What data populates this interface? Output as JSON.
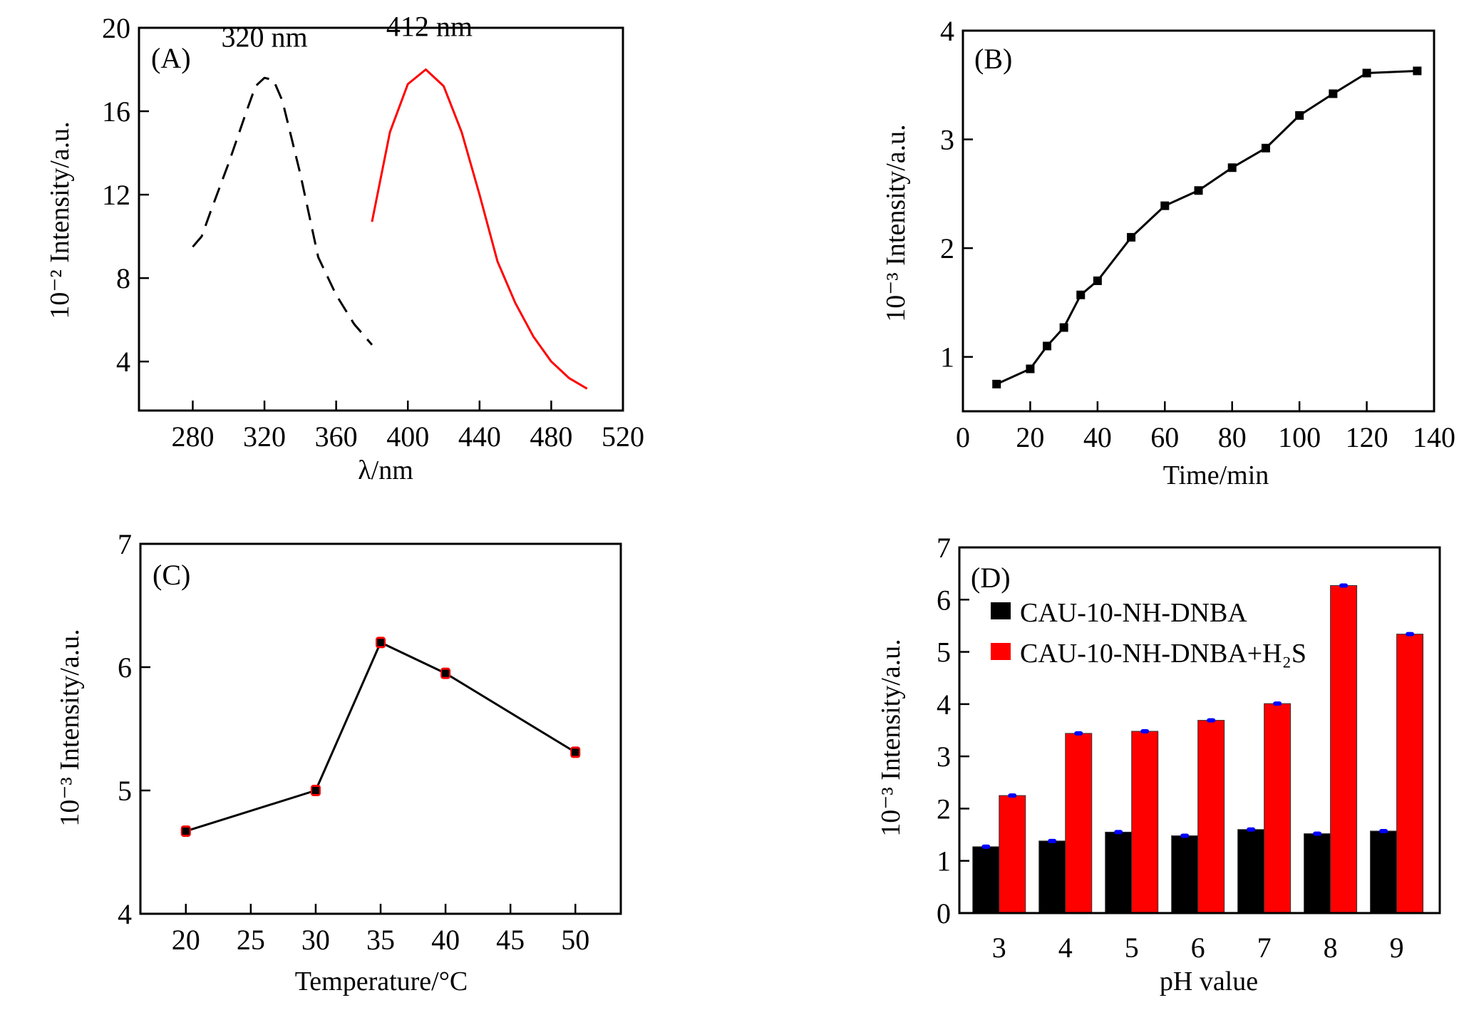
{
  "chart_data": [
    {
      "panel": "(A)",
      "type": "line",
      "xlabel": "λ/nm",
      "ylabel": "10⁻² Intensity/a.u.",
      "xlim": [
        250,
        520
      ],
      "ylim": [
        1.65,
        20
      ],
      "xticks": [
        280,
        320,
        360,
        400,
        440,
        480,
        520
      ],
      "yticks": [
        4,
        8,
        12,
        16,
        20
      ],
      "annotations": [
        {
          "text": "320 nm",
          "x": 320,
          "y": 19.1
        },
        {
          "text": "412 nm",
          "x": 412,
          "y": 19.6
        }
      ],
      "series": [
        {
          "style": "dashed",
          "color": "#000000",
          "x": [
            280,
            285,
            290,
            300,
            310,
            315,
            320,
            325,
            330,
            340,
            350,
            360,
            370,
            380
          ],
          "y": [
            9.5,
            10.0,
            11.2,
            13.5,
            16.0,
            17.2,
            17.6,
            17.5,
            16.5,
            13.0,
            9.0,
            7.2,
            5.8,
            4.8
          ]
        },
        {
          "style": "solid",
          "color": "#ff0000",
          "x": [
            380,
            390,
            400,
            410,
            420,
            430,
            440,
            450,
            460,
            470,
            480,
            490,
            500
          ],
          "y": [
            10.7,
            15.0,
            17.3,
            18.0,
            17.2,
            15.0,
            12.0,
            8.8,
            6.8,
            5.2,
            4.0,
            3.2,
            2.7
          ]
        }
      ]
    },
    {
      "panel": "(B)",
      "type": "line",
      "xlabel": "Time/min",
      "ylabel": "10⁻³ Intensity/a.u.",
      "xlim": [
        0,
        140
      ],
      "ylim": [
        0.5,
        4
      ],
      "xticks": [
        0,
        20,
        40,
        60,
        80,
        100,
        120,
        140
      ],
      "yticks": [
        1,
        2,
        3,
        4
      ],
      "series": [
        {
          "marker": "square",
          "color": "#000000",
          "x": [
            10,
            20,
            25,
            30,
            35,
            40,
            50,
            60,
            70,
            80,
            90,
            100,
            110,
            120,
            135
          ],
          "y": [
            0.75,
            0.89,
            1.1,
            1.27,
            1.57,
            1.7,
            2.1,
            2.39,
            2.53,
            2.74,
            2.92,
            3.22,
            3.42,
            3.61,
            3.63
          ]
        }
      ]
    },
    {
      "panel": "(C)",
      "type": "line",
      "xlabel": "Temperature/°C",
      "ylabel": "10⁻³ Intensity/a.u.",
      "xlim": [
        16.5,
        53.5
      ],
      "ylim": [
        4,
        7
      ],
      "xticks": [
        20,
        25,
        30,
        35,
        40,
        45,
        50
      ],
      "yticks": [
        4,
        5,
        6,
        7
      ],
      "series": [
        {
          "marker": "square",
          "color": "#000000",
          "errorbar_color": "#ff0000",
          "x": [
            20,
            30,
            35,
            40,
            50
          ],
          "y": [
            4.67,
            5.0,
            6.2,
            5.95,
            5.31
          ]
        }
      ]
    },
    {
      "panel": "(D)",
      "type": "bar",
      "xlabel": "pH value",
      "ylabel": "10⁻³ Intensity/a.u.",
      "ylim": [
        0,
        7
      ],
      "yticks": [
        0,
        1,
        2,
        3,
        4,
        5,
        6,
        7
      ],
      "categories": [
        "3",
        "4",
        "5",
        "6",
        "7",
        "8",
        "9"
      ],
      "legend_position": "top-left",
      "errorbar_color": "#0000ff",
      "series": [
        {
          "name": "CAU-10-NH-DNBA",
          "color": "#000000",
          "values": [
            1.27,
            1.38,
            1.55,
            1.48,
            1.6,
            1.52,
            1.57
          ]
        },
        {
          "name": "CAU-10-NH-DNBA+H₂S",
          "color": "#ff0000",
          "values": [
            2.25,
            3.44,
            3.48,
            3.69,
            4.01,
            6.27,
            5.34
          ]
        }
      ]
    }
  ]
}
